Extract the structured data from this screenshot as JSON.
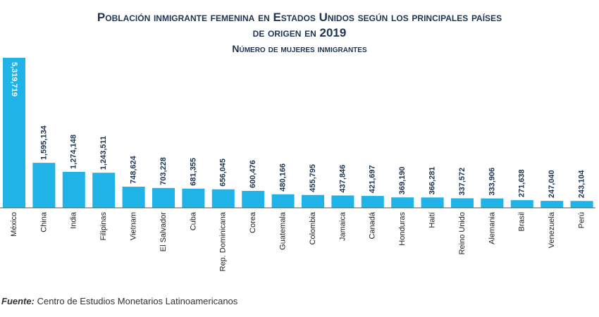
{
  "chart_data": {
    "type": "bar",
    "title": [
      "Población inmigrante femenina en Estados Unidos según los principales países",
      "de origen en 2019"
    ],
    "subtitle": "Número de mujeres inmigrantes",
    "categories": [
      "México",
      "China",
      "India",
      "Filipinas",
      "Vietnam",
      "El Salvador",
      "Cuba",
      "Rep. Dominicana",
      "Corea",
      "Guatemala",
      "Colombia",
      "Jamaica",
      "Canadá",
      "Honduras",
      "Haití",
      "Reino Unido",
      "Alemania",
      "Brasil",
      "Venezuela",
      "Perú"
    ],
    "values": [
      5319719,
      1595134,
      1274148,
      1243511,
      748624,
      703228,
      681355,
      656045,
      600476,
      480166,
      455795,
      437846,
      421697,
      369190,
      366281,
      337572,
      333906,
      271638,
      247040,
      243104
    ],
    "value_labels": [
      "5,319,719",
      "1,595,134",
      "1,274,148",
      "1,243,511",
      "748,624",
      "703,228",
      "681,355",
      "656,045",
      "600,476",
      "480,166",
      "455,795",
      "437,846",
      "421,697",
      "369,190",
      "366,281",
      "337,572",
      "333,906",
      "271,638",
      "247,040",
      "243,104"
    ],
    "color": "#1fb3e8",
    "source_label": "Fuente:",
    "source": "Centro de Estudios Monetarios Latinoamericanos"
  }
}
